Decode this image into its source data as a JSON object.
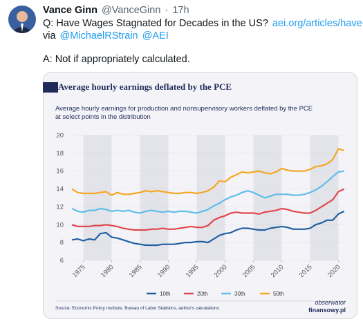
{
  "tweet": {
    "name": "Vance Ginn",
    "handle": "@VanceGinn",
    "separator": "·",
    "time": "17h",
    "line1": "Q: Have Wages Stagnated for Decades in the US?",
    "link": "aei.org/articles/have-…",
    "via": "via",
    "mention1": "@MichaelRStrain",
    "mention2": "@AEI",
    "answer": "A: Not if appropriately calculated."
  },
  "chart_data": {
    "type": "line",
    "title": "Average hourly earnings deflated by the PCE",
    "subtitle": [
      "Average hourly earnings for production and nonsupervisory workers deflated by the PCE",
      "at select points in the distribution"
    ],
    "source": "Source: Economic Policy Institute, Bureau of Labor Statistics, author's calculations",
    "logo": [
      "obserwator",
      "finansowy.pl"
    ],
    "x": [
      1973,
      1974,
      1975,
      1976,
      1977,
      1978,
      1979,
      1980,
      1981,
      1982,
      1983,
      1984,
      1985,
      1986,
      1987,
      1988,
      1989,
      1990,
      1991,
      1992,
      1993,
      1994,
      1995,
      1996,
      1997,
      1998,
      1999,
      2000,
      2001,
      2002,
      2003,
      2004,
      2005,
      2006,
      2007,
      2008,
      2009,
      2010,
      2011,
      2012,
      2013,
      2014,
      2015,
      2016,
      2017,
      2018,
      2019,
      2020,
      2021
    ],
    "xlim": [
      1972.5,
      2021.5
    ],
    "xticks": [
      1975,
      1980,
      1985,
      1990,
      1995,
      2000,
      2005,
      2010,
      2015,
      2020
    ],
    "ylim": [
      6,
      20
    ],
    "yticks": [
      6,
      8,
      10,
      12,
      14,
      16,
      18,
      20
    ],
    "grid": true,
    "series": [
      {
        "name": "10th",
        "color": "#1f5fa0",
        "values": [
          8.3,
          8.4,
          8.2,
          8.4,
          8.3,
          9.0,
          9.1,
          8.6,
          8.5,
          8.3,
          8.1,
          7.9,
          7.8,
          7.7,
          7.7,
          7.7,
          7.8,
          7.8,
          7.8,
          7.9,
          8.0,
          8.0,
          8.1,
          8.1,
          8.0,
          8.4,
          8.8,
          9.0,
          9.1,
          9.4,
          9.6,
          9.6,
          9.5,
          9.4,
          9.4,
          9.6,
          9.7,
          9.8,
          9.7,
          9.5,
          9.5,
          9.5,
          9.6,
          10.0,
          10.2,
          10.5,
          10.5,
          11.2,
          11.5
        ]
      },
      {
        "name": "20th",
        "color": "#e0474c",
        "values": [
          10.0,
          9.8,
          9.8,
          9.8,
          9.9,
          9.9,
          10.0,
          9.9,
          9.8,
          9.6,
          9.5,
          9.4,
          9.4,
          9.4,
          9.5,
          9.5,
          9.6,
          9.5,
          9.5,
          9.6,
          9.7,
          9.8,
          9.7,
          9.7,
          9.9,
          10.5,
          10.8,
          11.0,
          11.3,
          11.4,
          11.3,
          11.3,
          11.3,
          11.2,
          11.4,
          11.5,
          11.6,
          11.8,
          11.7,
          11.5,
          11.4,
          11.3,
          11.3,
          11.6,
          12.0,
          12.4,
          12.8,
          13.7,
          14.0
        ]
      },
      {
        "name": "30th",
        "color": "#5fbde8",
        "values": [
          11.8,
          11.5,
          11.4,
          11.6,
          11.6,
          11.8,
          11.7,
          11.5,
          11.6,
          11.5,
          11.6,
          11.4,
          11.3,
          11.5,
          11.6,
          11.5,
          11.4,
          11.5,
          11.4,
          11.5,
          11.5,
          11.4,
          11.3,
          11.5,
          11.7,
          12.1,
          12.4,
          12.8,
          13.1,
          13.3,
          13.6,
          13.8,
          13.6,
          13.3,
          13.0,
          13.2,
          13.4,
          13.4,
          13.4,
          13.3,
          13.3,
          13.4,
          13.6,
          13.9,
          14.3,
          14.8,
          15.4,
          15.9,
          16.0
        ]
      },
      {
        "name": "50th",
        "color": "#f5a623",
        "values": [
          14.0,
          13.6,
          13.5,
          13.5,
          13.5,
          13.6,
          13.7,
          13.3,
          13.6,
          13.4,
          13.4,
          13.5,
          13.6,
          13.8,
          13.7,
          13.8,
          13.7,
          13.6,
          13.5,
          13.5,
          13.6,
          13.6,
          13.5,
          13.6,
          13.8,
          14.2,
          14.9,
          14.8,
          15.3,
          15.6,
          15.9,
          15.8,
          15.9,
          16.0,
          15.8,
          15.7,
          15.9,
          16.3,
          16.1,
          16.0,
          16.0,
          16.0,
          16.2,
          16.5,
          16.6,
          16.8,
          17.3,
          18.5,
          18.3
        ]
      }
    ]
  }
}
